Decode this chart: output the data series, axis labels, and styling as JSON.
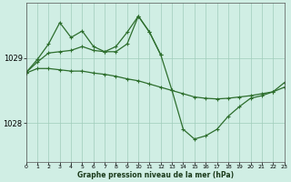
{
  "bg_color": "#d0eee4",
  "grid_color": "#a0ccbb",
  "line_color": "#2d6e2d",
  "title": "Graphe pression niveau de la mer (hPa)",
  "xlim": [
    0,
    23
  ],
  "ylim": [
    1027.4,
    1029.85
  ],
  "yticks": [
    1028,
    1029
  ],
  "xticks": [
    0,
    1,
    2,
    3,
    4,
    5,
    6,
    7,
    8,
    9,
    10,
    11,
    12,
    13,
    14,
    15,
    16,
    17,
    18,
    19,
    20,
    21,
    22,
    23
  ],
  "series": [
    {
      "x": [
        0,
        1,
        2,
        3,
        4,
        5,
        6,
        7,
        8,
        9,
        10,
        11,
        12,
        13,
        14,
        15,
        16,
        17,
        18,
        19,
        20,
        21,
        22,
        23
      ],
      "y": [
        1028.77,
        1028.84,
        1028.84,
        1028.82,
        1028.8,
        1028.8,
        1028.77,
        1028.75,
        1028.72,
        1028.68,
        1028.65,
        1028.6,
        1028.55,
        1028.5,
        1028.45,
        1028.4,
        1028.38,
        1028.37,
        1028.38,
        1028.4,
        1028.42,
        1028.45,
        1028.48,
        1028.55
      ]
    },
    {
      "x": [
        0,
        1,
        2,
        3,
        4,
        5,
        6,
        7,
        8,
        9,
        10,
        11,
        12,
        13,
        14,
        15,
        16,
        17,
        18,
        19,
        20,
        21,
        22,
        23
      ],
      "y": [
        1028.78,
        1028.94,
        1029.08,
        1029.1,
        1029.12,
        1029.18,
        1029.12,
        1029.1,
        1029.1,
        1029.22,
        1029.65,
        1029.4,
        1029.05,
        1028.5,
        1027.9,
        1027.75,
        1027.8,
        1027.9,
        1028.1,
        1028.25,
        1028.38,
        1028.42,
        1028.48,
        1028.62
      ]
    },
    {
      "x": [
        0,
        1,
        2,
        3,
        4,
        5,
        6,
        7,
        8,
        9,
        10,
        11,
        12
      ],
      "y": [
        1028.78,
        1028.98,
        1029.22,
        1029.55,
        1029.32,
        1029.42,
        1029.18,
        1029.1,
        1029.18,
        1029.4,
        1029.65,
        1029.4,
        1029.05
      ]
    }
  ]
}
